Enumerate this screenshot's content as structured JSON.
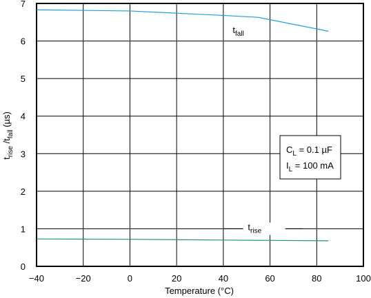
{
  "chart_data": {
    "type": "line",
    "xlabel": "Temperature  (°C)",
    "ylabel": {
      "base1": "t",
      "sub1": "rise",
      "mid": " /t",
      "sub2": "fall",
      "tail": "  (µs)"
    },
    "xlim": [
      -40,
      100
    ],
    "ylim": [
      0,
      7
    ],
    "xticks": [
      "−40",
      "−20",
      "0",
      "20",
      "40",
      "60",
      "80",
      "100"
    ],
    "xtick_values": [
      -40,
      -20,
      0,
      20,
      40,
      60,
      80,
      100
    ],
    "yticks": [
      "0",
      "1",
      "2",
      "3",
      "4",
      "5",
      "6",
      "7"
    ],
    "ytick_values": [
      0,
      1,
      2,
      3,
      4,
      5,
      6,
      7
    ],
    "grid": true,
    "series": [
      {
        "name": "t_fall",
        "label_base": "t",
        "label_sub": "fall",
        "color": "#1a9fdc",
        "x": [
          -40,
          0,
          20,
          40,
          55,
          85
        ],
        "y": [
          6.83,
          6.8,
          6.74,
          6.68,
          6.63,
          6.26
        ]
      },
      {
        "name": "t_rise",
        "label_base": "t",
        "label_sub": "rise",
        "color": "#1a9a6a",
        "x": [
          -40,
          0,
          40,
          85
        ],
        "y": [
          0.73,
          0.72,
          0.7,
          0.68
        ]
      }
    ],
    "legend": {
      "placement": "right",
      "lines": [
        {
          "base": "C",
          "sub": "L",
          "rest": " = 0.1 µF"
        },
        {
          "base": "I",
          "sub": "L",
          "rest": " = 100 mA"
        }
      ]
    }
  }
}
